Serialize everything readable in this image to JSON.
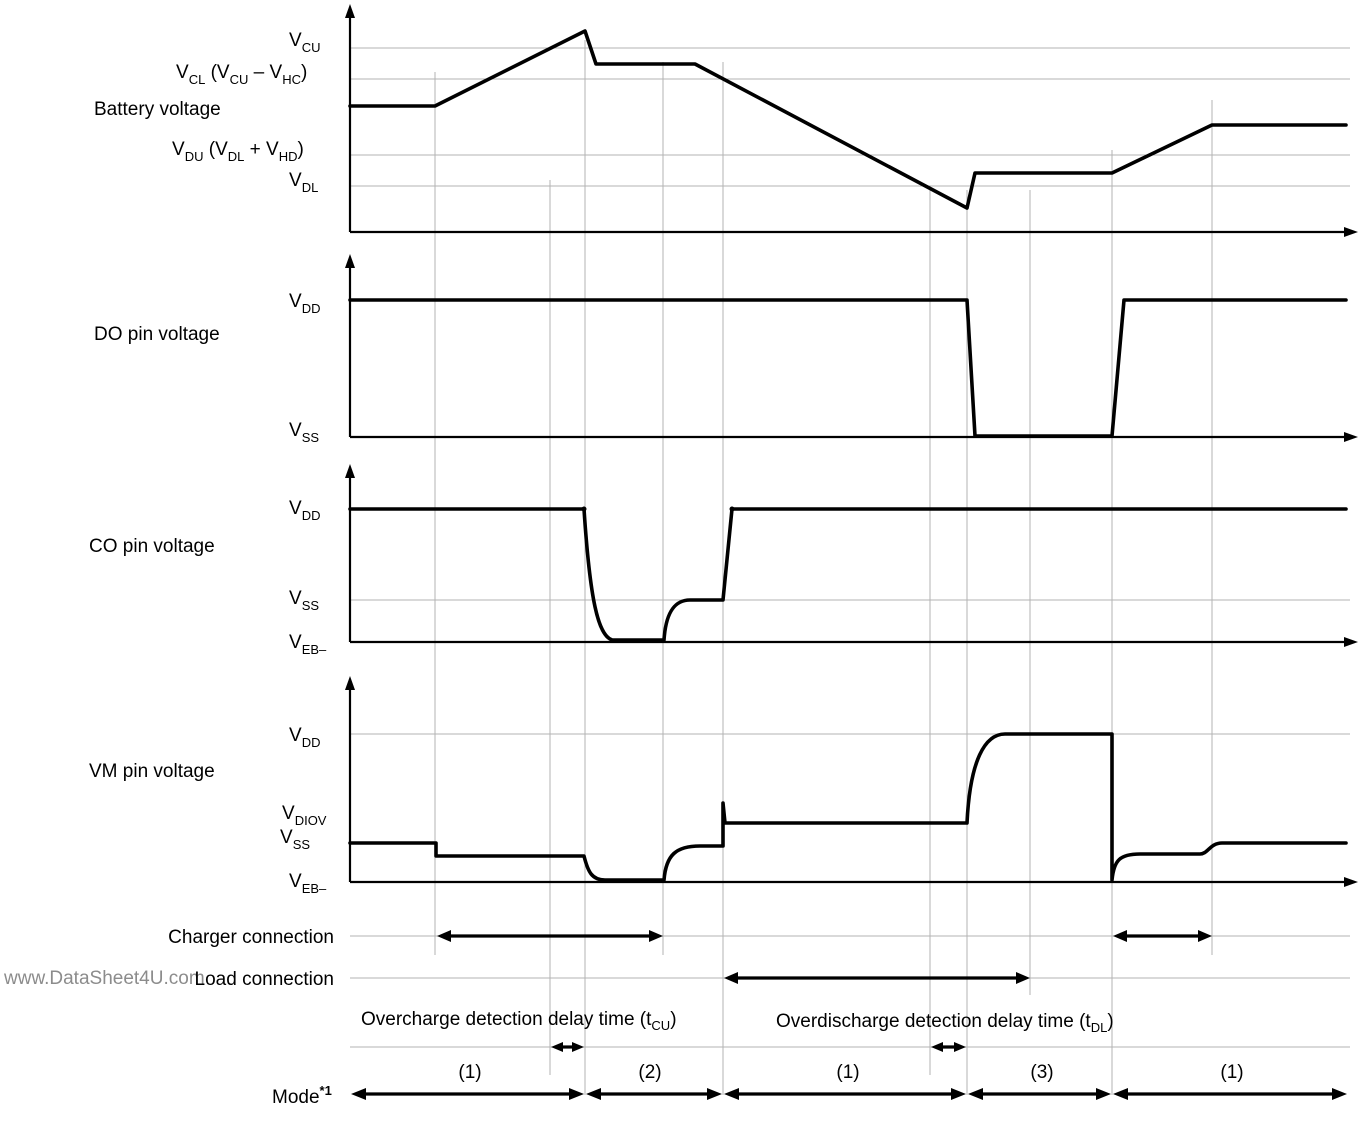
{
  "watermark": "www.DataSheet4U.com",
  "panels": {
    "battery": {
      "title": "Battery voltage",
      "levels": {
        "vcu": {
          "main": "V",
          "sub": "CU"
        },
        "vcl": {
          "pre": "V",
          "s1": "CL",
          "mid": " (V",
          "s2": "CU",
          "mid2": " – V",
          "s3": "HC",
          "post": ")"
        },
        "vdu": {
          "pre": "V",
          "s1": "DU",
          "mid": " (V",
          "s2": "DL",
          "mid2": " + V",
          "s3": "HD",
          "post": ")"
        },
        "vdl": {
          "main": "V",
          "sub": "DL"
        }
      }
    },
    "do_pin": {
      "title": "DO pin voltage",
      "levels": {
        "vdd": {
          "main": "V",
          "sub": "DD"
        },
        "vss": {
          "main": "V",
          "sub": "SS"
        }
      }
    },
    "co_pin": {
      "title": "CO pin voltage",
      "levels": {
        "vdd": {
          "main": "V",
          "sub": "DD"
        },
        "vss": {
          "main": "V",
          "sub": "SS"
        },
        "veb": {
          "main": "V",
          "sub": "EB–"
        }
      }
    },
    "vm_pin": {
      "title": "VM pin voltage",
      "levels": {
        "vdd": {
          "main": "V",
          "sub": "DD"
        },
        "vdiov": {
          "main": "V",
          "sub": "DIOV"
        },
        "vss": {
          "main": "V",
          "sub": "SS"
        },
        "veb": {
          "main": "V",
          "sub": "EB–"
        }
      }
    }
  },
  "rows": {
    "charger": "Charger connection",
    "load": "Load connection",
    "overcharge": {
      "text": "Overcharge detection delay time (t",
      "sub": "CU",
      "post": ")"
    },
    "overdischarge": {
      "text": "Overdischarge detection delay time (t",
      "sub": "DL",
      "post": ")"
    },
    "mode": {
      "text": "Mode",
      "sup": "*1"
    }
  },
  "modes": [
    "(1)",
    "(2)",
    "(1)",
    "(3)",
    "(1)"
  ]
}
